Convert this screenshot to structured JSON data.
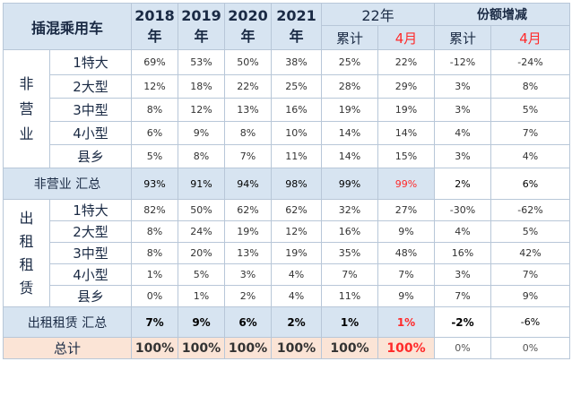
{
  "header": {
    "title": "插混乘用车",
    "years": [
      "2018",
      "2019",
      "2020",
      "2021"
    ],
    "year_suffix": "年",
    "g22": "22年",
    "share": "份额增减",
    "cum": "累计",
    "apr": "4月"
  },
  "groups": {
    "noncommercial": [
      "非",
      "营",
      "业"
    ],
    "rental": [
      "出",
      "租",
      "租",
      "赁"
    ]
  },
  "rows_a": [
    {
      "cat": "1特大",
      "v": [
        "69%",
        "53%",
        "50%",
        "38%",
        "25%",
        "22%",
        "-12%",
        "-24%"
      ]
    },
    {
      "cat": "2大型",
      "v": [
        "12%",
        "18%",
        "22%",
        "25%",
        "28%",
        "29%",
        "3%",
        "8%"
      ]
    },
    {
      "cat": "3中型",
      "v": [
        "8%",
        "12%",
        "13%",
        "16%",
        "19%",
        "19%",
        "3%",
        "5%"
      ]
    },
    {
      "cat": "4小型",
      "v": [
        "6%",
        "9%",
        "8%",
        "10%",
        "14%",
        "14%",
        "4%",
        "7%"
      ]
    },
    {
      "cat": "县乡",
      "v": [
        "5%",
        "8%",
        "7%",
        "11%",
        "14%",
        "15%",
        "3%",
        "4%"
      ]
    }
  ],
  "sum_a": {
    "label": "非营业 汇总",
    "v": [
      "93%",
      "91%",
      "94%",
      "98%",
      "99%",
      "99%",
      "2%",
      "6%"
    ]
  },
  "rows_b": [
    {
      "cat": "1特大",
      "v": [
        "82%",
        "50%",
        "62%",
        "62%",
        "32%",
        "27%",
        "-30%",
        "-62%"
      ]
    },
    {
      "cat": "2大型",
      "v": [
        "8%",
        "24%",
        "19%",
        "12%",
        "16%",
        "9%",
        "4%",
        "5%"
      ]
    },
    {
      "cat": "3中型",
      "v": [
        "8%",
        "20%",
        "13%",
        "19%",
        "35%",
        "48%",
        "16%",
        "42%"
      ]
    },
    {
      "cat": "4小型",
      "v": [
        "1%",
        "5%",
        "3%",
        "4%",
        "7%",
        "7%",
        "3%",
        "7%"
      ]
    },
    {
      "cat": "县乡",
      "v": [
        "0%",
        "1%",
        "2%",
        "4%",
        "11%",
        "9%",
        "7%",
        "9%"
      ]
    }
  ],
  "sum_b": {
    "label": "出租租赁 汇总",
    "v": [
      "7%",
      "9%",
      "6%",
      "2%",
      "1%",
      "1%",
      "-2%",
      "-6%"
    ]
  },
  "total": {
    "label": "总计",
    "v": [
      "100%",
      "100%",
      "100%",
      "100%",
      "100%",
      "100%",
      "0%",
      "0%"
    ]
  }
}
